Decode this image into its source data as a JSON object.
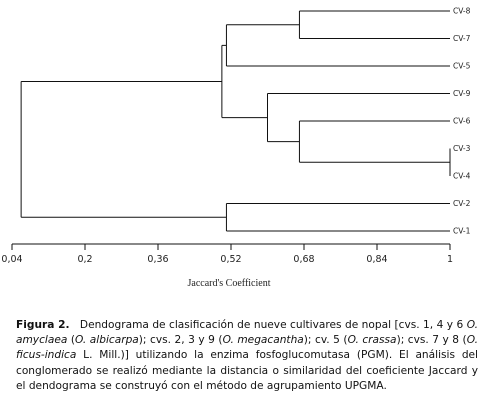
{
  "dendrogram": {
    "leaves": [
      "CV-8",
      "CV-7",
      "CV-5",
      "CV-9",
      "CV-6",
      "CV-3",
      "CV-4",
      "CV-2",
      "CV-1"
    ],
    "merges": [
      {
        "a": "CV-3",
        "b": "CV-4",
        "similarity": 1.0
      },
      {
        "a": "CV-8",
        "b": "CV-7",
        "similarity": 0.67
      },
      {
        "a": "CV-6",
        "b": "CV-3+CV-4",
        "similarity": 0.67
      },
      {
        "a": "CV-9",
        "b": "CV-6+CV-3+CV-4",
        "similarity": 0.6
      },
      {
        "a": "CV-8+CV-7",
        "b": "CV-5",
        "similarity": 0.51
      },
      {
        "a": "CV-8+CV-7+CV-5",
        "b": "CV-9+CV-6+CV-3+CV-4",
        "similarity": 0.5
      },
      {
        "a": "CV-2",
        "b": "CV-1",
        "similarity": 0.51
      },
      {
        "a": "CV-8..CV-4",
        "b": "CV-2+CV-1",
        "similarity": 0.06
      }
    ],
    "x_axis": {
      "label": "Jaccard's Coefficient",
      "range": [
        0.04,
        1.0
      ],
      "ticks": [
        "0,04",
        "0,2",
        "0,36",
        "0,52",
        "0,68",
        "0,84",
        "1"
      ]
    }
  },
  "caption": {
    "label": "Figura 2.",
    "s1": "Dendograma de clasificación de nueve cultivares de nopal [cvs. 1, 4 y 6 ",
    "sp1": "O. amyclaea",
    "s2": " (",
    "sp2": "O. albicarpa",
    "s3": "); cvs. 2, 3 y 9 (",
    "sp3": "O. megacantha",
    "s4": "); cv. 5 (",
    "sp4": "O. crassa",
    "s5": "); cvs. 7 y 8 (",
    "sp5": "O. ficus-indica",
    "s6": " L. Mill.)] utilizando la enzima fosfoglucomutasa (PGM). El análisis del conglomerado se realizó mediante la distancia o similaridad del coeficiente Jaccard y el dendograma se construyó con el método de agrupamiento UPGMA."
  }
}
